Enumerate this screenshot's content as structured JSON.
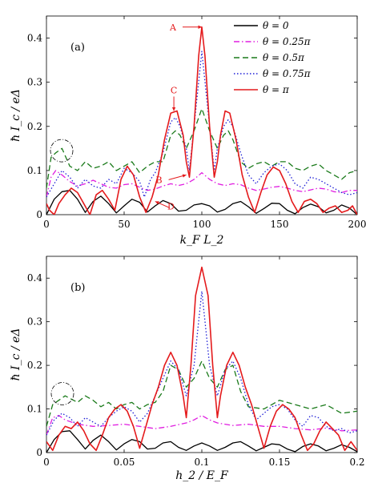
{
  "chart_data": [
    {
      "type": "line",
      "panel_label": "(a)",
      "xlabel": "k_F L_2",
      "ylabel": "ħ I_c / eΔ",
      "xlim": [
        0,
        200
      ],
      "ylim": [
        0,
        0.45
      ],
      "xticks": [
        0,
        50,
        100,
        150,
        200
      ],
      "yticks": [
        0,
        0.1,
        0.2,
        0.3,
        0.4
      ],
      "legend_placement": "top-right",
      "series": [
        {
          "name": "θ = 0",
          "color": "#000000",
          "dash": "solid",
          "x": [
            0,
            5,
            10,
            15,
            20,
            25,
            30,
            35,
            40,
            45,
            50,
            55,
            60,
            65,
            70,
            75,
            80,
            85,
            90,
            95,
            100,
            105,
            110,
            115,
            120,
            125,
            130,
            135,
            140,
            145,
            150,
            155,
            160,
            165,
            170,
            175,
            180,
            185,
            190,
            195,
            200
          ],
          "y": [
            0.0,
            0.035,
            0.052,
            0.055,
            0.035,
            0.005,
            0.03,
            0.042,
            0.025,
            0.004,
            0.02,
            0.035,
            0.028,
            0.006,
            0.02,
            0.032,
            0.025,
            0.008,
            0.01,
            0.022,
            0.025,
            0.02,
            0.006,
            0.012,
            0.025,
            0.03,
            0.018,
            0.003,
            0.014,
            0.026,
            0.025,
            0.01,
            0.002,
            0.016,
            0.024,
            0.018,
            0.004,
            0.01,
            0.022,
            0.015,
            0.0
          ]
        },
        {
          "name": "θ = 0.25π",
          "color": "#e01ee0",
          "dash": "dashdot",
          "x": [
            0,
            3,
            6,
            10,
            15,
            20,
            25,
            30,
            35,
            40,
            45,
            50,
            55,
            60,
            65,
            70,
            75,
            80,
            85,
            90,
            95,
            100,
            105,
            110,
            115,
            120,
            125,
            130,
            135,
            140,
            145,
            150,
            155,
            160,
            165,
            170,
            175,
            180,
            185,
            190,
            195,
            200
          ],
          "y": [
            0.04,
            0.085,
            0.1,
            0.09,
            0.075,
            0.065,
            0.07,
            0.078,
            0.07,
            0.062,
            0.06,
            0.068,
            0.07,
            0.062,
            0.055,
            0.058,
            0.065,
            0.07,
            0.066,
            0.07,
            0.08,
            0.095,
            0.08,
            0.07,
            0.066,
            0.07,
            0.068,
            0.06,
            0.055,
            0.058,
            0.062,
            0.064,
            0.06,
            0.055,
            0.052,
            0.056,
            0.06,
            0.058,
            0.052,
            0.05,
            0.055,
            0.055
          ]
        },
        {
          "name": "θ = 0.5π",
          "color": "#1a7a1a",
          "dash": "dashed",
          "x": [
            0,
            3,
            6,
            10,
            15,
            20,
            25,
            30,
            35,
            40,
            45,
            50,
            55,
            60,
            65,
            70,
            75,
            80,
            83,
            86,
            90,
            95,
            100,
            105,
            110,
            114,
            117,
            120,
            125,
            130,
            135,
            140,
            145,
            150,
            155,
            160,
            165,
            170,
            175,
            180,
            185,
            190,
            195,
            200
          ],
          "y": [
            0.06,
            0.13,
            0.14,
            0.15,
            0.11,
            0.1,
            0.12,
            0.105,
            0.11,
            0.12,
            0.1,
            0.11,
            0.12,
            0.095,
            0.11,
            0.12,
            0.12,
            0.18,
            0.19,
            0.18,
            0.15,
            0.19,
            0.24,
            0.19,
            0.15,
            0.18,
            0.19,
            0.17,
            0.12,
            0.105,
            0.115,
            0.12,
            0.11,
            0.12,
            0.12,
            0.105,
            0.1,
            0.11,
            0.115,
            0.1,
            0.09,
            0.08,
            0.095,
            0.1
          ]
        },
        {
          "name": "θ = 0.75π",
          "color": "#1f1fd6",
          "dash": "dotted",
          "x": [
            0,
            5,
            10,
            15,
            20,
            25,
            30,
            35,
            40,
            45,
            50,
            55,
            60,
            63,
            67,
            70,
            75,
            80,
            83,
            86,
            90,
            92,
            95,
            100,
            105,
            108,
            110,
            114,
            117,
            120,
            125,
            130,
            135,
            140,
            145,
            150,
            155,
            160,
            165,
            170,
            175,
            180,
            185,
            190,
            195,
            200
          ],
          "y": [
            0.04,
            0.07,
            0.1,
            0.085,
            0.06,
            0.08,
            0.065,
            0.06,
            0.08,
            0.07,
            0.105,
            0.095,
            0.075,
            0.04,
            0.08,
            0.095,
            0.14,
            0.21,
            0.22,
            0.2,
            0.15,
            0.1,
            0.2,
            0.37,
            0.2,
            0.1,
            0.15,
            0.2,
            0.215,
            0.2,
            0.14,
            0.09,
            0.07,
            0.095,
            0.11,
            0.115,
            0.1,
            0.07,
            0.06,
            0.085,
            0.08,
            0.07,
            0.06,
            0.05,
            0.045,
            0.05
          ]
        },
        {
          "name": "θ = π",
          "color": "#e41a1c",
          "dash": "solid",
          "x": [
            0,
            2,
            5,
            8,
            12,
            16,
            20,
            24,
            28,
            32,
            36,
            40,
            44,
            48,
            52,
            56,
            60,
            64,
            68,
            72,
            76,
            80,
            84,
            88,
            90,
            92,
            95,
            98,
            100,
            102,
            105,
            108,
            110,
            112,
            115,
            118,
            122,
            126,
            130,
            134,
            138,
            142,
            146,
            150,
            154,
            158,
            162,
            166,
            170,
            174,
            178,
            182,
            186,
            190,
            194,
            197,
            200
          ],
          "y": [
            0.025,
            0.01,
            0.0,
            0.025,
            0.045,
            0.06,
            0.05,
            0.025,
            0.0,
            0.045,
            0.055,
            0.035,
            0.01,
            0.08,
            0.11,
            0.09,
            0.04,
            0.005,
            0.04,
            0.09,
            0.17,
            0.23,
            0.235,
            0.18,
            0.12,
            0.085,
            0.2,
            0.36,
            0.425,
            0.36,
            0.2,
            0.085,
            0.12,
            0.18,
            0.235,
            0.23,
            0.17,
            0.09,
            0.04,
            0.005,
            0.05,
            0.09,
            0.108,
            0.1,
            0.07,
            0.03,
            0.005,
            0.03,
            0.035,
            0.025,
            0.005,
            0.015,
            0.02,
            0.005,
            0.01,
            0.02,
            0.0
          ]
        }
      ],
      "annotations": [
        {
          "text": "A",
          "x": 100,
          "y": 0.425
        },
        {
          "text": "B",
          "x": 90,
          "y": 0.09
        },
        {
          "text": "C",
          "x": 82,
          "y": 0.235
        },
        {
          "text": "D",
          "x": 70,
          "y": 0.03
        }
      ]
    },
    {
      "type": "line",
      "panel_label": "(b)",
      "xlabel": "h_2 / E_F",
      "ylabel": "ħ I_c / eΔ",
      "xlim": [
        0,
        0.2
      ],
      "ylim": [
        0,
        0.45
      ],
      "xticks": [
        0,
        0.05,
        0.1,
        0.15,
        0.2
      ],
      "yticks": [
        0,
        0.1,
        0.2,
        0.3,
        0.4
      ],
      "series": [
        {
          "name": "θ = 0",
          "color": "#000000",
          "dash": "solid",
          "x": [
            0,
            0.005,
            0.01,
            0.015,
            0.02,
            0.025,
            0.03,
            0.035,
            0.04,
            0.045,
            0.05,
            0.055,
            0.06,
            0.065,
            0.07,
            0.075,
            0.08,
            0.085,
            0.09,
            0.095,
            0.1,
            0.105,
            0.11,
            0.115,
            0.12,
            0.125,
            0.13,
            0.135,
            0.14,
            0.145,
            0.15,
            0.155,
            0.16,
            0.165,
            0.17,
            0.175,
            0.18,
            0.185,
            0.19,
            0.195,
            0.2
          ],
          "y": [
            0.0,
            0.03,
            0.048,
            0.05,
            0.03,
            0.008,
            0.028,
            0.04,
            0.025,
            0.006,
            0.02,
            0.03,
            0.025,
            0.008,
            0.01,
            0.022,
            0.025,
            0.012,
            0.005,
            0.015,
            0.022,
            0.015,
            0.005,
            0.012,
            0.022,
            0.025,
            0.015,
            0.004,
            0.012,
            0.02,
            0.018,
            0.008,
            0.002,
            0.014,
            0.02,
            0.015,
            0.004,
            0.01,
            0.018,
            0.012,
            0.002
          ]
        },
        {
          "name": "θ = 0.25π",
          "color": "#e01ee0",
          "dash": "dashdot",
          "x": [
            0,
            0.004,
            0.008,
            0.012,
            0.02,
            0.03,
            0.04,
            0.05,
            0.06,
            0.07,
            0.08,
            0.09,
            0.095,
            0.1,
            0.105,
            0.11,
            0.12,
            0.13,
            0.14,
            0.15,
            0.16,
            0.17,
            0.18,
            0.19,
            0.2
          ],
          "y": [
            0.04,
            0.08,
            0.085,
            0.075,
            0.065,
            0.06,
            0.062,
            0.065,
            0.06,
            0.055,
            0.06,
            0.068,
            0.075,
            0.085,
            0.075,
            0.068,
            0.062,
            0.065,
            0.06,
            0.06,
            0.055,
            0.052,
            0.056,
            0.05,
            0.052
          ]
        },
        {
          "name": "θ = 0.5π",
          "color": "#1a7a1a",
          "dash": "dashed",
          "x": [
            0,
            0.004,
            0.008,
            0.012,
            0.02,
            0.025,
            0.03,
            0.035,
            0.04,
            0.045,
            0.05,
            0.055,
            0.06,
            0.065,
            0.07,
            0.075,
            0.08,
            0.085,
            0.09,
            0.095,
            0.1,
            0.105,
            0.11,
            0.115,
            0.12,
            0.125,
            0.13,
            0.14,
            0.15,
            0.16,
            0.17,
            0.18,
            0.19,
            0.2
          ],
          "y": [
            0.06,
            0.11,
            0.12,
            0.13,
            0.115,
            0.13,
            0.12,
            0.105,
            0.115,
            0.1,
            0.11,
            0.115,
            0.1,
            0.11,
            0.115,
            0.14,
            0.2,
            0.19,
            0.15,
            0.17,
            0.21,
            0.17,
            0.15,
            0.19,
            0.2,
            0.14,
            0.105,
            0.1,
            0.12,
            0.11,
            0.1,
            0.11,
            0.09,
            0.095
          ]
        },
        {
          "name": "θ = 0.75π",
          "color": "#1f1fd6",
          "dash": "dotted",
          "x": [
            0,
            0.005,
            0.01,
            0.015,
            0.02,
            0.025,
            0.03,
            0.035,
            0.04,
            0.045,
            0.05,
            0.055,
            0.06,
            0.065,
            0.07,
            0.075,
            0.08,
            0.085,
            0.09,
            0.095,
            0.1,
            0.105,
            0.11,
            0.115,
            0.12,
            0.125,
            0.13,
            0.135,
            0.14,
            0.145,
            0.15,
            0.155,
            0.16,
            0.165,
            0.17,
            0.175,
            0.18,
            0.185,
            0.19,
            0.195,
            0.2
          ],
          "y": [
            0.04,
            0.075,
            0.09,
            0.08,
            0.06,
            0.08,
            0.07,
            0.06,
            0.08,
            0.095,
            0.105,
            0.095,
            0.07,
            0.09,
            0.13,
            0.17,
            0.21,
            0.19,
            0.13,
            0.2,
            0.37,
            0.2,
            0.13,
            0.19,
            0.21,
            0.17,
            0.11,
            0.075,
            0.09,
            0.105,
            0.11,
            0.1,
            0.075,
            0.06,
            0.085,
            0.08,
            0.06,
            0.05,
            0.055,
            0.045,
            0.05
          ]
        },
        {
          "name": "θ = π",
          "color": "#e41a1c",
          "dash": "solid",
          "x": [
            0,
            0.004,
            0.008,
            0.012,
            0.016,
            0.02,
            0.024,
            0.028,
            0.032,
            0.036,
            0.04,
            0.044,
            0.048,
            0.052,
            0.056,
            0.06,
            0.064,
            0.068,
            0.072,
            0.076,
            0.08,
            0.084,
            0.088,
            0.09,
            0.093,
            0.096,
            0.1,
            0.104,
            0.107,
            0.11,
            0.112,
            0.116,
            0.12,
            0.124,
            0.128,
            0.132,
            0.136,
            0.14,
            0.144,
            0.148,
            0.152,
            0.156,
            0.16,
            0.164,
            0.168,
            0.172,
            0.176,
            0.18,
            0.184,
            0.188,
            0.192,
            0.196,
            0.2
          ],
          "y": [
            0.025,
            0.005,
            0.04,
            0.06,
            0.055,
            0.07,
            0.05,
            0.02,
            0.005,
            0.04,
            0.08,
            0.1,
            0.11,
            0.095,
            0.06,
            0.01,
            0.06,
            0.11,
            0.15,
            0.2,
            0.23,
            0.2,
            0.13,
            0.08,
            0.2,
            0.36,
            0.425,
            0.36,
            0.2,
            0.08,
            0.13,
            0.2,
            0.23,
            0.2,
            0.15,
            0.11,
            0.06,
            0.01,
            0.06,
            0.095,
            0.11,
            0.1,
            0.08,
            0.04,
            0.005,
            0.02,
            0.05,
            0.07,
            0.055,
            0.04,
            0.005,
            0.025,
            0.005
          ]
        }
      ]
    }
  ]
}
